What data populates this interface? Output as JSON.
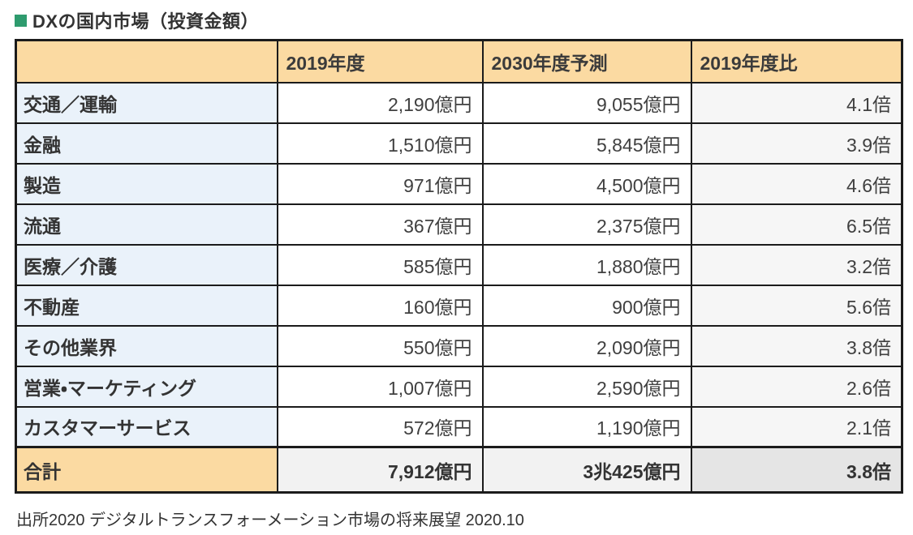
{
  "header": {
    "title": "DXの国内市場（投資金額）"
  },
  "chart_data": {
    "type": "table",
    "title": "DXの国内市場（投資金額）",
    "columns": [
      "",
      "2019年度",
      "2030年度予測",
      "2019年度比"
    ],
    "industry_rows": [
      [
        "交通／運輸",
        "2,190億円",
        "9,055億円",
        "4.1倍"
      ],
      [
        "金融",
        "1,510億円",
        "5,845億円",
        "3.9倍"
      ],
      [
        "製造",
        "971億円",
        "4,500億円",
        "4.6倍"
      ],
      [
        "流通",
        "367億円",
        "2,375億円",
        "6.5倍"
      ],
      [
        "医療／介護",
        "585億円",
        "1,880億円",
        "3.2倍"
      ],
      [
        "不動産",
        "160億円",
        "900億円",
        "5.6倍"
      ],
      [
        "その他業界",
        "550億円",
        "2,090億円",
        "3.8倍"
      ],
      [
        "営業・マーケティング",
        "1,007億円",
        "2,590億円",
        "2.6倍"
      ],
      [
        "カスタマーサービス",
        "572億円",
        "1,190億円",
        "2.1倍"
      ]
    ],
    "total_row": [
      "合計",
      "7,912億円",
      "3兆425億円",
      "3.8倍"
    ],
    "units": {
      "value": "億円",
      "ratio": "倍"
    }
  },
  "source_note": "出所2020 デジタルトランスフォーメーション市場の将来展望 2020.10",
  "colors": {
    "title_bullet": "#2E9B6E",
    "header_bg": "#FBDAA2",
    "label_bg": "#EAF2FA",
    "value_bg": "#FFFFFF",
    "ratio_bg": "#F6F6F6",
    "total_label_bg": "#FBDAA2",
    "total_value_bg": "#F2F2F2",
    "total_ratio_bg": "#E5E5E5",
    "border": "#1B1B1B",
    "text": "#333333"
  }
}
